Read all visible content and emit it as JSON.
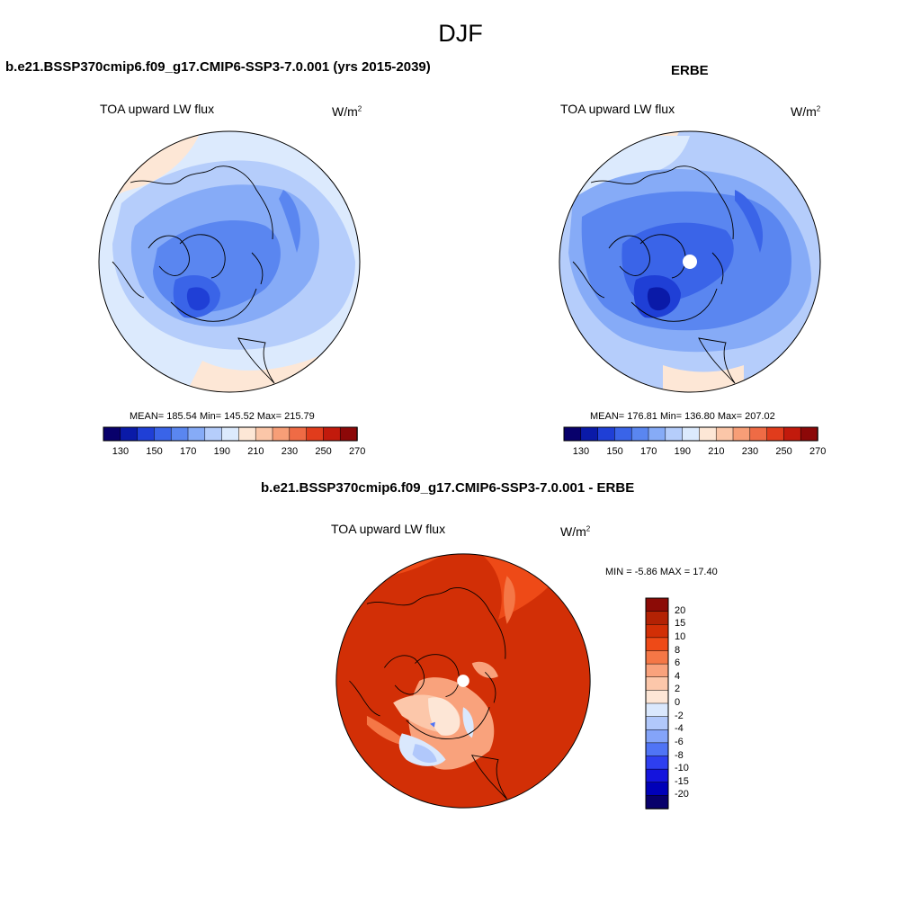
{
  "main_title": "DJF",
  "colors": {
    "land_outline": "#000000",
    "abs_palette": [
      "#08006b",
      "#0a1aa8",
      "#1f3fd6",
      "#3a64e8",
      "#5a86f0",
      "#86abf7",
      "#b5cdfb",
      "#dceafd",
      "#fde7d6",
      "#fbc6a8",
      "#f79e77",
      "#ef6b45",
      "#e13c1c",
      "#c21a0c",
      "#8c0808"
    ],
    "diff_palette": [
      "#08006b",
      "#0000b8",
      "#1414dd",
      "#2e3ff0",
      "#5074f5",
      "#84a4f9",
      "#b1c8fb",
      "#dae8fd",
      "#fde6d6",
      "#fcc7aa",
      "#f9a27c",
      "#f57746",
      "#ee4a17",
      "#d22f06",
      "#b32204",
      "#8c0b06"
    ]
  },
  "panels": {
    "model": {
      "title": "b.e21.BSSP370cmip6.f09_g17.CMIP6-SSP3-7.0.001 (yrs 2015-2039)",
      "variable": "TOA upward LW flux",
      "unit": "W/m",
      "unit_sup": "2",
      "stats": "MEAN= 185.54  Min= 145.52  Max= 215.79"
    },
    "obs": {
      "title": "ERBE",
      "variable": "TOA upward LW flux",
      "unit": "W/m",
      "unit_sup": "2",
      "stats": "MEAN= 176.81  Min= 136.80  Max= 207.02"
    },
    "diff": {
      "title": "b.e21.BSSP370cmip6.f09_g17.CMIP6-SSP3-7.0.001 - ERBE",
      "variable": "TOA upward LW flux",
      "unit": "W/m",
      "unit_sup": "2",
      "stats": "MIN =  -5.86 MAX =  17.40"
    }
  },
  "abs_colorbar_ticks": [
    "130",
    "150",
    "170",
    "190",
    "210",
    "230",
    "250",
    "270"
  ],
  "diff_colorbar_labels": [
    "20",
    "15",
    "10",
    "8",
    "6",
    "4",
    "2",
    "0",
    "-2",
    "-4",
    "-6",
    "-8",
    "-10",
    "-15",
    "-20"
  ]
}
